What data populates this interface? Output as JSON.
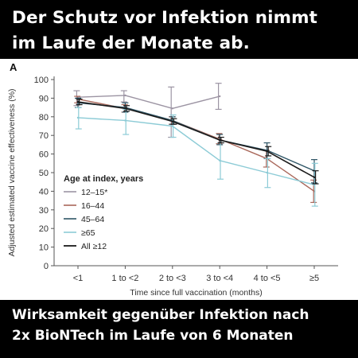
{
  "header": {
    "line1": "Der Schutz vor Infektion nimmt",
    "line2": "im Laufe der Monate ab."
  },
  "footer": {
    "line1": "Wirksamkeit gegenüber Infektion nach",
    "line2": "2x BioNTech im Laufe von 6 Monaten"
  },
  "chart_data": {
    "type": "line",
    "panel_label": "A",
    "title": "",
    "xlabel": "Time since full vaccination (months)",
    "ylabel": "Adjusted estimated vaccine effectiveness (%)",
    "categories": [
      "<1",
      "1 to <2",
      "2 to <3",
      "3 to <4",
      "4 to <5",
      "≥5"
    ],
    "ylim": [
      0,
      100
    ],
    "yticks": [
      0,
      10,
      20,
      30,
      40,
      50,
      60,
      70,
      80,
      90,
      100
    ],
    "grid": false,
    "legend": {
      "title": "Age at index, years",
      "placement": "left-center"
    },
    "series": [
      {
        "name": "12–15*",
        "color": "#9c94a3",
        "values": [
          90.5,
          91.5,
          84.5,
          91,
          null,
          null
        ],
        "lower": [
          86,
          88,
          69,
          84,
          null,
          null
        ],
        "upper": [
          94,
          94,
          96,
          98,
          null,
          null
        ]
      },
      {
        "name": "16–44",
        "color": "#a9675a",
        "values": [
          89.5,
          84.5,
          78,
          68,
          57.5,
          40
        ],
        "lower": [
          87.5,
          82.5,
          76,
          65.5,
          53,
          34
        ],
        "upper": [
          91,
          86.5,
          80,
          71,
          62,
          46
        ]
      },
      {
        "name": "45–64",
        "color": "#2e5566",
        "values": [
          87.5,
          85,
          78,
          67.5,
          62,
          51
        ],
        "lower": [
          85,
          82.5,
          76,
          65,
          57.5,
          44.5
        ],
        "upper": [
          90,
          87.5,
          80,
          70.5,
          66,
          57
        ]
      },
      {
        "name": "≥65",
        "color": "#8ccbd6",
        "values": [
          79.5,
          78,
          75,
          56.5,
          50,
          43.5
        ],
        "lower": [
          73.5,
          70.5,
          69,
          46.5,
          42,
          32
        ],
        "upper": [
          85,
          84,
          81,
          66,
          57.5,
          55
        ]
      },
      {
        "name": "All ≥12",
        "color": "#1a1a1a",
        "values": [
          88,
          84.5,
          77.5,
          67.5,
          61.5,
          47.5
        ],
        "lower": [
          86.5,
          83,
          76,
          66,
          59,
          44
        ],
        "upper": [
          89.5,
          86,
          79,
          69,
          64,
          51
        ]
      }
    ]
  }
}
